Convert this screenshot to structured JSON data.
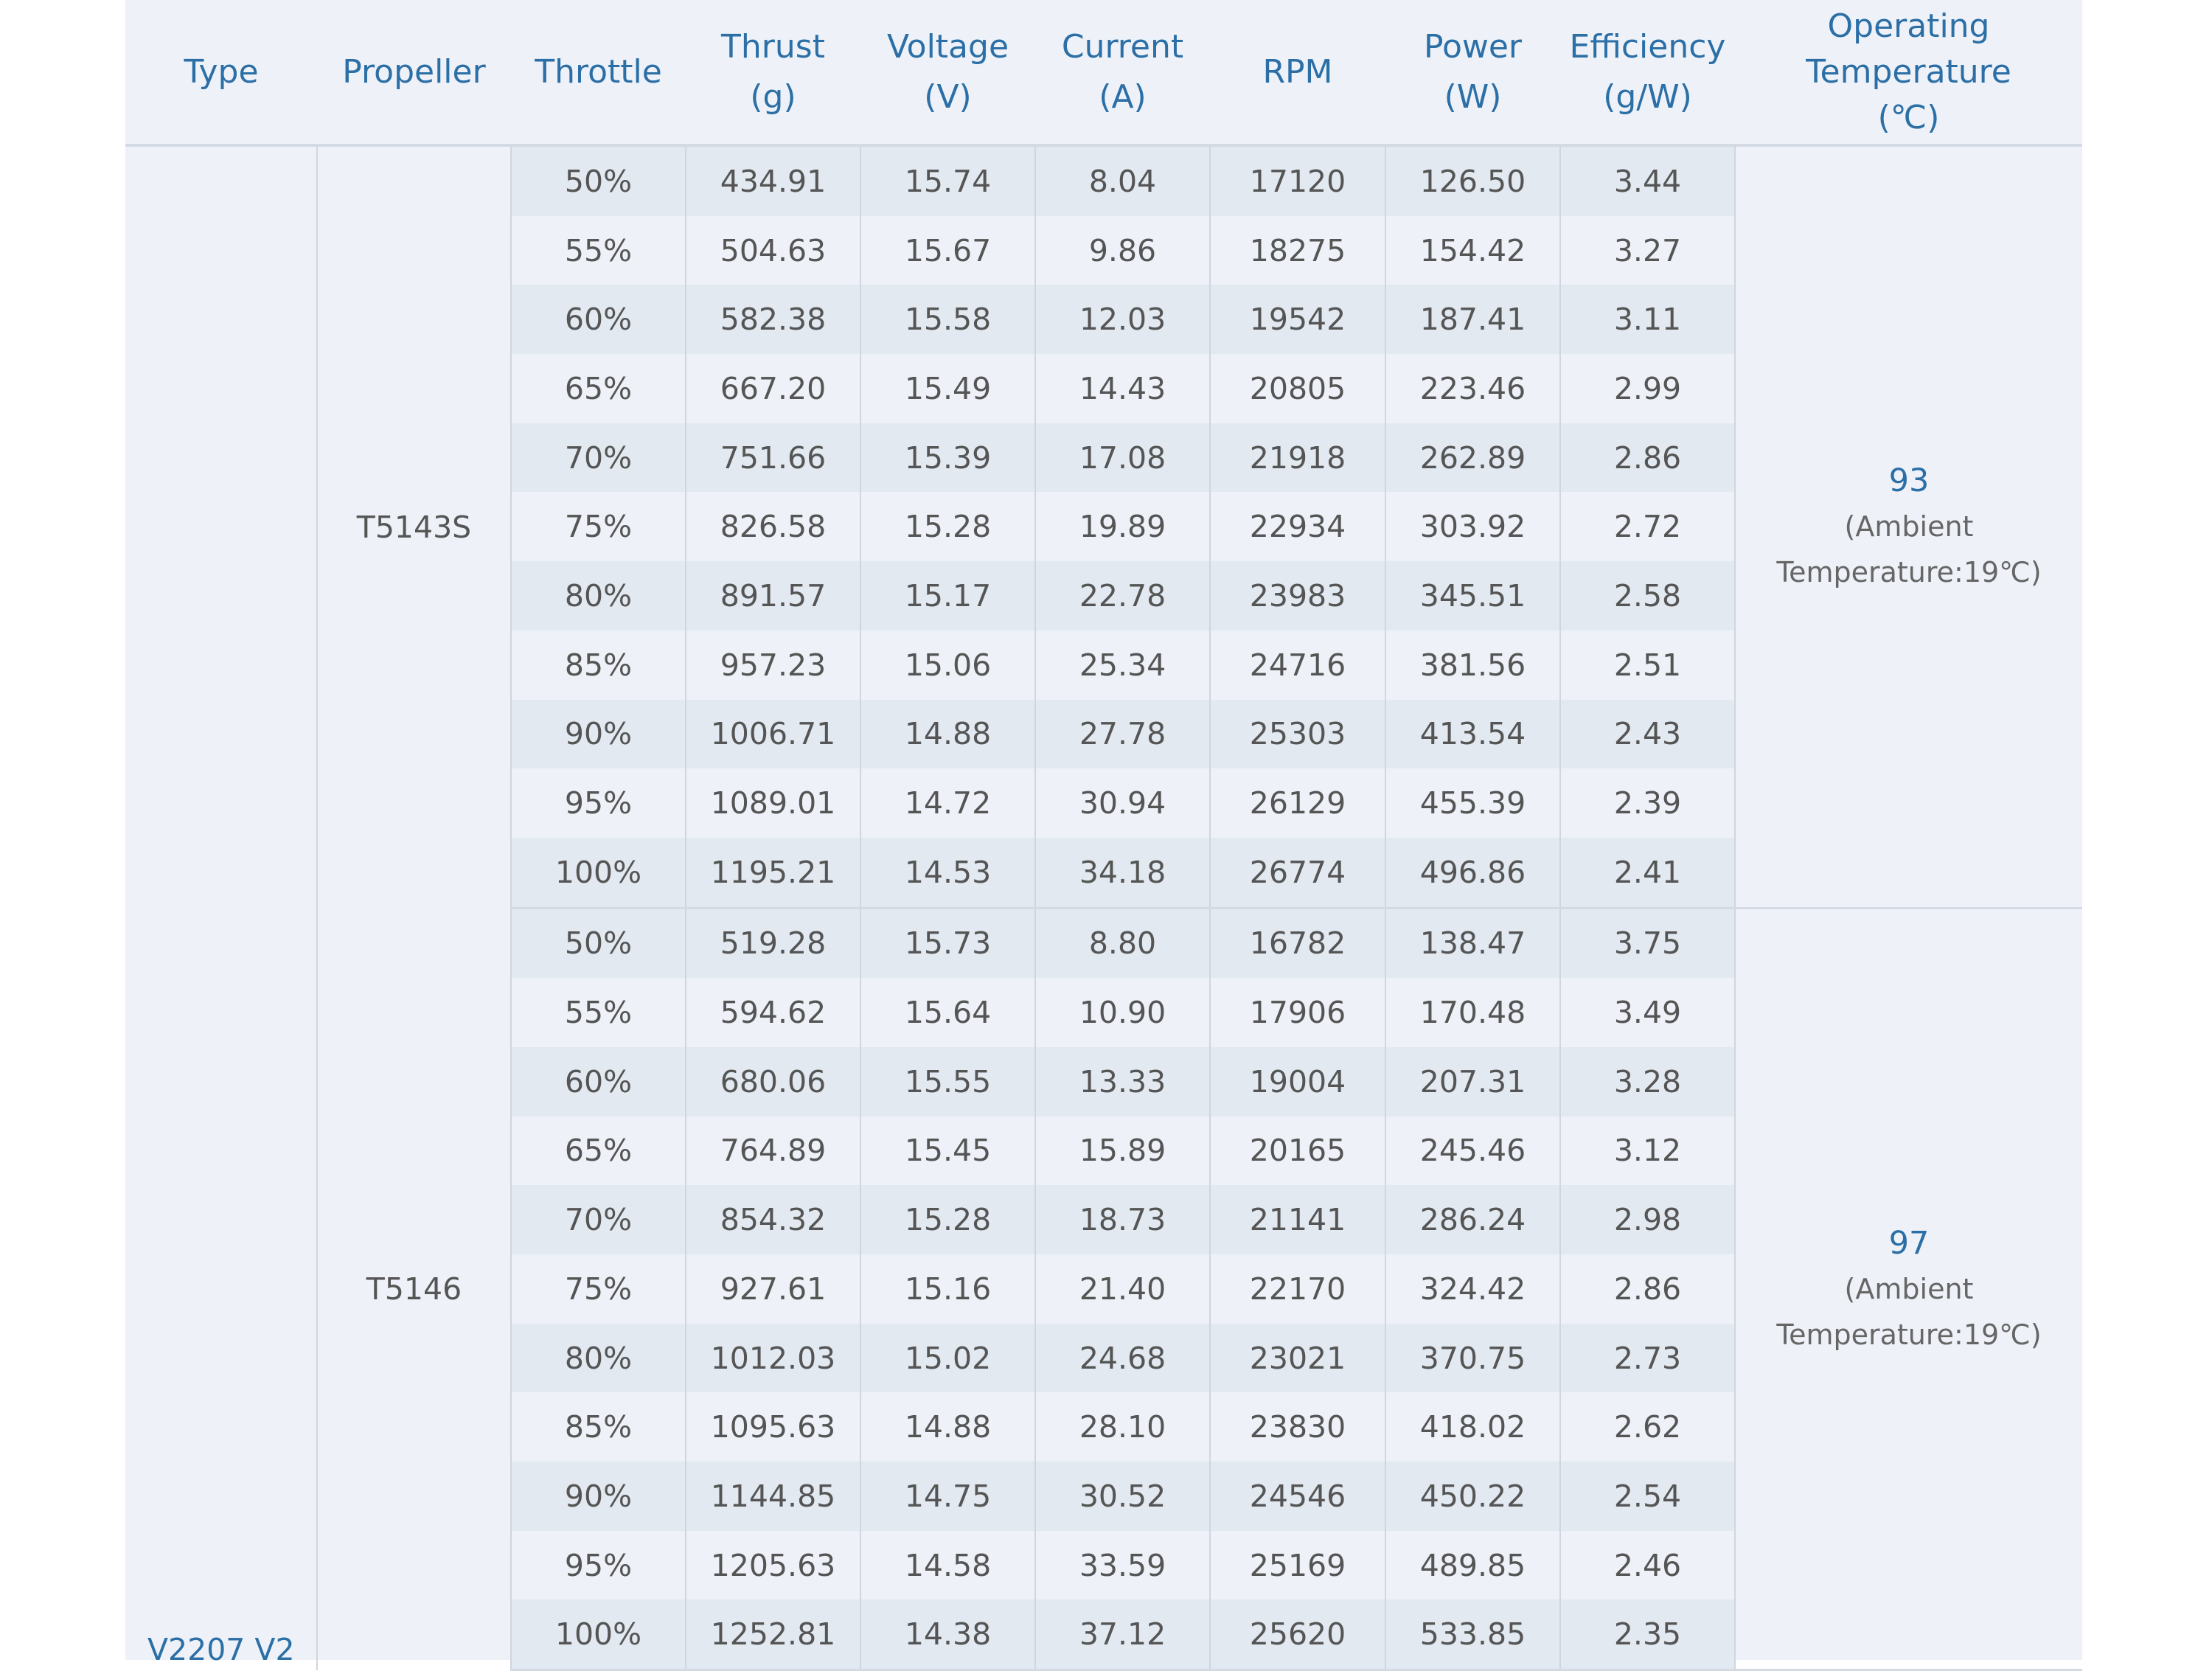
{
  "headers": [
    "Type",
    "Propeller",
    "Throttle",
    "Thrust\n(g)",
    "Voltage\n(V)",
    "Current\n(A)",
    "RPM",
    "Power\n(W)",
    "Efficiency\n(g/W)",
    "Operating\nTemperature\n(℃)"
  ],
  "type": "V2207 V2",
  "groups": [
    {
      "propeller": "T5143S",
      "temp": "93",
      "ambient_line1": "(Ambient",
      "ambient_line2": "Temperature:19℃)",
      "rows": [
        [
          "50%",
          "434.91",
          "15.74",
          "8.04",
          "17120",
          "126.50",
          "3.44"
        ],
        [
          "55%",
          "504.63",
          "15.67",
          "9.86",
          "18275",
          "154.42",
          "3.27"
        ],
        [
          "60%",
          "582.38",
          "15.58",
          "12.03",
          "19542",
          "187.41",
          "3.11"
        ],
        [
          "65%",
          "667.20",
          "15.49",
          "14.43",
          "20805",
          "223.46",
          "2.99"
        ],
        [
          "70%",
          "751.66",
          "15.39",
          "17.08",
          "21918",
          "262.89",
          "2.86"
        ],
        [
          "75%",
          "826.58",
          "15.28",
          "19.89",
          "22934",
          "303.92",
          "2.72"
        ],
        [
          "80%",
          "891.57",
          "15.17",
          "22.78",
          "23983",
          "345.51",
          "2.58"
        ],
        [
          "85%",
          "957.23",
          "15.06",
          "25.34",
          "24716",
          "381.56",
          "2.51"
        ],
        [
          "90%",
          "1006.71",
          "14.88",
          "27.78",
          "25303",
          "413.54",
          "2.43"
        ],
        [
          "95%",
          "1089.01",
          "14.72",
          "30.94",
          "26129",
          "455.39",
          "2.39"
        ],
        [
          "100%",
          "1195.21",
          "14.53",
          "34.18",
          "26774",
          "496.86",
          "2.41"
        ]
      ]
    },
    {
      "propeller": "T5146",
      "temp": "97",
      "ambient_line1": "(Ambient",
      "ambient_line2": "Temperature:19℃)",
      "rows": [
        [
          "50%",
          "519.28",
          "15.73",
          "8.80",
          "16782",
          "138.47",
          "3.75"
        ],
        [
          "55%",
          "594.62",
          "15.64",
          "10.90",
          "17906",
          "170.48",
          "3.49"
        ],
        [
          "60%",
          "680.06",
          "15.55",
          "13.33",
          "19004",
          "207.31",
          "3.28"
        ],
        [
          "65%",
          "764.89",
          "15.45",
          "15.89",
          "20165",
          "245.46",
          "3.12"
        ],
        [
          "70%",
          "854.32",
          "15.28",
          "18.73",
          "21141",
          "286.24",
          "2.98"
        ],
        [
          "75%",
          "927.61",
          "15.16",
          "21.40",
          "22170",
          "324.42",
          "2.86"
        ],
        [
          "80%",
          "1012.03",
          "15.02",
          "24.68",
          "23021",
          "370.75",
          "2.73"
        ],
        [
          "85%",
          "1095.63",
          "14.88",
          "28.10",
          "23830",
          "418.02",
          "2.62"
        ],
        [
          "90%",
          "1144.85",
          "14.75",
          "30.52",
          "24546",
          "450.22",
          "2.54"
        ],
        [
          "95%",
          "1205.63",
          "14.58",
          "33.59",
          "25169",
          "489.85",
          "2.46"
        ],
        [
          "100%",
          "1252.81",
          "14.38",
          "37.12",
          "25620",
          "533.85",
          "2.35"
        ]
      ]
    }
  ]
}
